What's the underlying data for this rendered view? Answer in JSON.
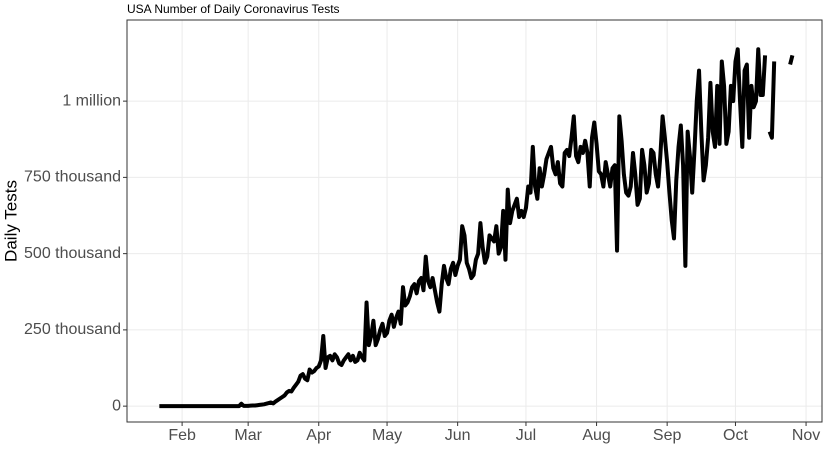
{
  "chart_data": {
    "type": "line",
    "title": "USA Number of Daily Coronavirus Tests",
    "y_label": "Daily Tests",
    "x": [
      22,
      23,
      24,
      25,
      26,
      27,
      28,
      29,
      30,
      31,
      32,
      33,
      34,
      35,
      36,
      37,
      38,
      39,
      40,
      41,
      42,
      43,
      44,
      45,
      46,
      47,
      48,
      49,
      50,
      51,
      52,
      53,
      54,
      55,
      56,
      57,
      58,
      59,
      60,
      61,
      62,
      63,
      64,
      65,
      66,
      67,
      68,
      69,
      70,
      71,
      72,
      73,
      74,
      75,
      76,
      77,
      78,
      79,
      80,
      81,
      82,
      83,
      84,
      85,
      86,
      87,
      88,
      89,
      90,
      91,
      92,
      93,
      94,
      95,
      96,
      97,
      98,
      99,
      100,
      101,
      102,
      103,
      104,
      105,
      106,
      107,
      108,
      109,
      110,
      111,
      112,
      113,
      114,
      115,
      116,
      117,
      118,
      119,
      120,
      121,
      122,
      123,
      124,
      125,
      126,
      127,
      128,
      129,
      130,
      131,
      132,
      133,
      134,
      135,
      136,
      137,
      138,
      139,
      140,
      141,
      142,
      143,
      144,
      145,
      146,
      147,
      148,
      149,
      150,
      151,
      152,
      153,
      154,
      155,
      156,
      157,
      158,
      159,
      160,
      161,
      162,
      163,
      164,
      165,
      166,
      167,
      168,
      169,
      170,
      171,
      172,
      173,
      174,
      175,
      176,
      177,
      178,
      179,
      180,
      181,
      182,
      183,
      184,
      185,
      186,
      187,
      188,
      189,
      190,
      191,
      192,
      193,
      194,
      195,
      196,
      197,
      198,
      199,
      200,
      201,
      202,
      203,
      204,
      205,
      206,
      207,
      208,
      209,
      210,
      211,
      212,
      213,
      214,
      215,
      216,
      217,
      218,
      219,
      220,
      221,
      222,
      223,
      224,
      225,
      226,
      227,
      228,
      229,
      230,
      231,
      232,
      233,
      234,
      235,
      236,
      237,
      238,
      239,
      240,
      241,
      242,
      243,
      244,
      245,
      246,
      247,
      248,
      249,
      250,
      251,
      252,
      253,
      254,
      255,
      256,
      257,
      258,
      259,
      260,
      261,
      262,
      263,
      264,
      265,
      266,
      267,
      268,
      269,
      270,
      271,
      272,
      273,
      274,
      275,
      276,
      277,
      278,
      279,
      280,
      281,
      282,
      283,
      284,
      285,
      286,
      287,
      288,
      289,
      290,
      291,
      292,
      293,
      294,
      295,
      296,
      297,
      298,
      299,
      300
    ],
    "series": [
      {
        "name": "Daily Tests",
        "color": "#000000",
        "values": [
          0,
          0,
          0,
          0,
          0,
          0,
          0,
          0,
          0,
          0,
          0,
          0,
          0,
          0,
          0,
          0,
          0,
          0,
          0,
          0,
          0,
          0,
          0,
          0,
          0,
          0,
          0,
          0,
          0,
          0,
          0,
          0,
          0,
          0,
          0,
          0,
          8000,
          1000,
          1000,
          1000,
          1500,
          2000,
          2000,
          3000,
          4000,
          5000,
          6000,
          8000,
          10000,
          12000,
          9000,
          15000,
          20000,
          25000,
          30000,
          35000,
          45000,
          50000,
          48000,
          60000,
          70000,
          80000,
          100000,
          105000,
          90000,
          85000,
          120000,
          110000,
          115000,
          125000,
          130000,
          150000,
          230000,
          125000,
          160000,
          165000,
          150000,
          170000,
          160000,
          140000,
          135000,
          150000,
          160000,
          170000,
          150000,
          165000,
          145000,
          150000,
          175000,
          160000,
          150000,
          340000,
          200000,
          230000,
          280000,
          200000,
          220000,
          250000,
          270000,
          230000,
          240000,
          280000,
          300000,
          260000,
          290000,
          310000,
          270000,
          390000,
          330000,
          340000,
          360000,
          390000,
          400000,
          370000,
          410000,
          420000,
          380000,
          490000,
          410000,
          390000,
          420000,
          380000,
          340000,
          310000,
          400000,
          460000,
          420000,
          400000,
          450000,
          470000,
          430000,
          460000,
          480000,
          590000,
          560000,
          470000,
          450000,
          420000,
          430000,
          480000,
          500000,
          600000,
          520000,
          470000,
          490000,
          560000,
          550000,
          540000,
          590000,
          500000,
          520000,
          640000,
          480000,
          710000,
          600000,
          640000,
          660000,
          680000,
          620000,
          640000,
          620000,
          650000,
          720000,
          700000,
          850000,
          720000,
          680000,
          780000,
          720000,
          760000,
          810000,
          830000,
          850000,
          780000,
          760000,
          800000,
          730000,
          720000,
          830000,
          840000,
          820000,
          880000,
          950000,
          820000,
          800000,
          850000,
          830000,
          870000,
          830000,
          720000,
          880000,
          930000,
          860000,
          770000,
          760000,
          720000,
          800000,
          760000,
          720000,
          780000,
          790000,
          510000,
          950000,
          870000,
          760000,
          700000,
          690000,
          720000,
          830000,
          760000,
          660000,
          680000,
          840000,
          790000,
          700000,
          730000,
          840000,
          830000,
          760000,
          720000,
          820000,
          950000,
          880000,
          800000,
          700000,
          610000,
          550000,
          740000,
          850000,
          920000,
          790000,
          460000,
          900000,
          820000,
          700000,
          840000,
          1000000,
          1100000,
          900000,
          740000,
          790000,
          880000,
          1060000,
          900000,
          850000,
          1050000,
          860000,
          1130000,
          1050000,
          860000,
          900000,
          1050000,
          1000000,
          1130000,
          1170000,
          1000000,
          850000,
          1100000,
          1120000,
          880000,
          1050000,
          980000,
          1000000,
          1170000,
          1020000,
          1020000,
          1150000,
          null,
          900000,
          880000,
          1130000,
          null,
          null,
          null,
          null,
          null,
          null,
          1120000,
          1150000
        ]
      }
    ],
    "xlim": [
      7.8,
      313
    ],
    "xticks": [
      {
        "value": 32,
        "label": "Feb"
      },
      {
        "value": 61,
        "label": "Mar"
      },
      {
        "value": 92,
        "label": "Apr"
      },
      {
        "value": 122,
        "label": "May"
      },
      {
        "value": 153,
        "label": "Jun"
      },
      {
        "value": 183,
        "label": "Jul"
      },
      {
        "value": 214,
        "label": "Aug"
      },
      {
        "value": 245,
        "label": "Sep"
      },
      {
        "value": 275,
        "label": "Oct"
      },
      {
        "value": 306,
        "label": "Nov"
      }
    ],
    "ylim": [
      -52000,
      1266000
    ],
    "yticks": [
      0,
      {
        "value": 250000,
        "label": "250 thousand"
      },
      {
        "value": 500000,
        "label": "500 thousand"
      },
      {
        "value": 750000,
        "label": "750 thousand"
      },
      {
        "value": 1000000,
        "label": "1 million"
      }
    ],
    "grid": true
  }
}
